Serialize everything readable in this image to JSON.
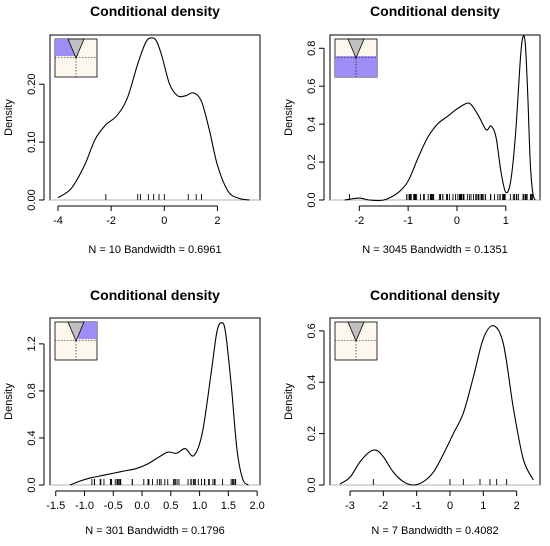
{
  "inset_colors": {
    "background": "#fdf8ee",
    "fill": "#a08cf5",
    "cone": "#c0c0c0"
  },
  "chart_data": [
    {
      "type": "line",
      "title": "Conditional density",
      "ylabel": "Density",
      "xlabel": "N = 10   Bandwidth = 0.6961",
      "xlim": [
        -4.3,
        3.6
      ],
      "ylim": [
        0,
        0.285
      ],
      "xticks": [
        -4,
        -2,
        0,
        2
      ],
      "yticks": [
        0.0,
        0.1,
        0.2
      ],
      "x": [
        -4.0,
        -3.5,
        -3.0,
        -2.6,
        -2.2,
        -1.8,
        -1.4,
        -1.0,
        -0.7,
        -0.5,
        -0.3,
        -0.1,
        0.2,
        0.5,
        0.8,
        1.1,
        1.4,
        1.7,
        2.0,
        2.4,
        2.8,
        3.2
      ],
      "y": [
        0.004,
        0.02,
        0.06,
        0.105,
        0.13,
        0.145,
        0.175,
        0.235,
        0.272,
        0.28,
        0.275,
        0.25,
        0.2,
        0.18,
        0.18,
        0.185,
        0.17,
        0.12,
        0.06,
        0.015,
        0.003,
        0.0
      ],
      "rug": [
        -2.2,
        -1.0,
        -0.9,
        -0.6,
        -0.4,
        -0.2,
        0.0,
        0.9,
        1.2,
        1.4
      ],
      "inset": {
        "fill_top": 0.0,
        "fill_bottom": 0.45,
        "fill_left": 0.0,
        "fill_right": 0.55
      }
    },
    {
      "type": "line",
      "title": "Conditional density",
      "ylabel": "Density",
      "xlabel": "N = 3045   Bandwidth = 0.1351",
      "xlim": [
        -2.6,
        1.7
      ],
      "ylim": [
        0,
        0.87
      ],
      "xticks": [
        -2,
        -1,
        0,
        1
      ],
      "yticks": [
        0.0,
        0.2,
        0.4,
        0.6,
        0.8
      ],
      "x": [
        -2.3,
        -2.0,
        -1.8,
        -1.5,
        -1.2,
        -1.0,
        -0.8,
        -0.6,
        -0.4,
        -0.2,
        0.0,
        0.2,
        0.3,
        0.45,
        0.6,
        0.7,
        0.8,
        0.9,
        1.0,
        1.1,
        1.2,
        1.3,
        1.35,
        1.4,
        1.45,
        1.5,
        1.55,
        1.6
      ],
      "y": [
        0.0,
        0.01,
        0.0,
        0.0,
        0.04,
        0.1,
        0.22,
        0.33,
        0.4,
        0.44,
        0.48,
        0.51,
        0.5,
        0.44,
        0.37,
        0.39,
        0.33,
        0.15,
        0.04,
        0.1,
        0.35,
        0.75,
        0.86,
        0.82,
        0.55,
        0.2,
        0.04,
        0.0
      ],
      "rug_range": [
        -1.05,
        1.55
      ],
      "rug_count": 90,
      "rug": [
        -2.2
      ],
      "inset": {
        "fill_top": 0.45,
        "fill_bottom": 1.0,
        "fill_left": 0.0,
        "fill_right": 1.0
      }
    },
    {
      "type": "line",
      "title": "Conditional density",
      "ylabel": "Density",
      "xlabel": "N = 301   Bandwidth = 0.1796",
      "xlim": [
        -1.6,
        2.05
      ],
      "ylim": [
        0,
        1.42
      ],
      "xticks": [
        -1.5,
        -1.0,
        -0.5,
        0.0,
        0.5,
        1.0,
        1.5,
        2.0
      ],
      "yticks": [
        0.0,
        0.4,
        0.8,
        1.2
      ],
      "x": [
        -1.25,
        -1.1,
        -0.9,
        -0.7,
        -0.5,
        -0.3,
        -0.1,
        0.1,
        0.3,
        0.45,
        0.6,
        0.75,
        0.9,
        1.05,
        1.2,
        1.3,
        1.38,
        1.45,
        1.55,
        1.65,
        1.75,
        1.85
      ],
      "y": [
        0.0,
        0.03,
        0.06,
        0.08,
        0.1,
        0.12,
        0.14,
        0.18,
        0.24,
        0.28,
        0.27,
        0.31,
        0.25,
        0.45,
        0.95,
        1.3,
        1.38,
        1.3,
        0.85,
        0.3,
        0.05,
        0.0
      ],
      "rug_range": [
        -0.95,
        1.7
      ],
      "rug_count": 55,
      "rug": [],
      "inset": {
        "fill_top": 0.0,
        "fill_bottom": 0.45,
        "fill_left": 0.55,
        "fill_right": 1.0
      }
    },
    {
      "type": "line",
      "title": "Conditional density",
      "ylabel": "Density",
      "xlabel": "N = 7   Bandwidth = 0.4082",
      "xlim": [
        -3.6,
        2.7
      ],
      "ylim": [
        0,
        0.65
      ],
      "xticks": [
        -3,
        -2,
        -1,
        0,
        1,
        2
      ],
      "yticks": [
        0.0,
        0.2,
        0.4,
        0.6
      ],
      "x": [
        -3.3,
        -3.0,
        -2.7,
        -2.4,
        -2.2,
        -2.0,
        -1.7,
        -1.4,
        -1.1,
        -0.8,
        -0.5,
        -0.2,
        0.1,
        0.4,
        0.7,
        1.0,
        1.3,
        1.6,
        1.9,
        2.2,
        2.5
      ],
      "y": [
        0.004,
        0.03,
        0.09,
        0.13,
        0.135,
        0.11,
        0.05,
        0.013,
        0.0,
        0.013,
        0.05,
        0.12,
        0.2,
        0.28,
        0.42,
        0.57,
        0.62,
        0.55,
        0.3,
        0.1,
        0.02
      ],
      "rug": [
        -2.3,
        0.0,
        0.4,
        0.9,
        1.2,
        1.4,
        1.7
      ],
      "inset": {
        "fill_top": 0.0,
        "fill_bottom": 0.0,
        "fill_left": 0.0,
        "fill_right": 0.0
      }
    }
  ]
}
